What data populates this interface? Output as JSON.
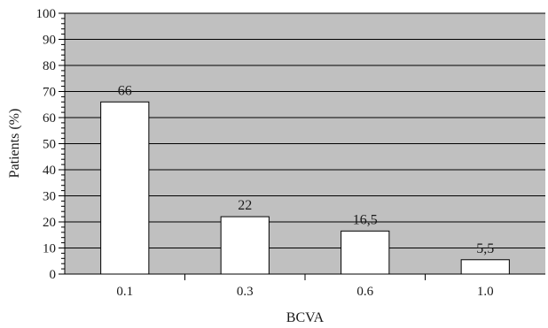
{
  "chart_data": {
    "type": "bar",
    "categories": [
      "0.1",
      "0.3",
      "0.6",
      "1.0"
    ],
    "values": [
      66,
      22,
      16.5,
      5.5
    ],
    "data_labels": [
      "66",
      "22",
      "16,5",
      "5,5"
    ],
    "xlabel": "BCVA",
    "ylabel": "Patients (%)",
    "ylim": [
      0,
      100
    ],
    "yticks": [
      "0",
      "10",
      "20",
      "30",
      "40",
      "50",
      "60",
      "70",
      "80",
      "90",
      "100"
    ],
    "grid": true,
    "colors": {
      "plot_background": "#c0c0c0",
      "bar_fill": "#ffffff",
      "bar_stroke": "#000000",
      "gridline": "#000000"
    }
  }
}
